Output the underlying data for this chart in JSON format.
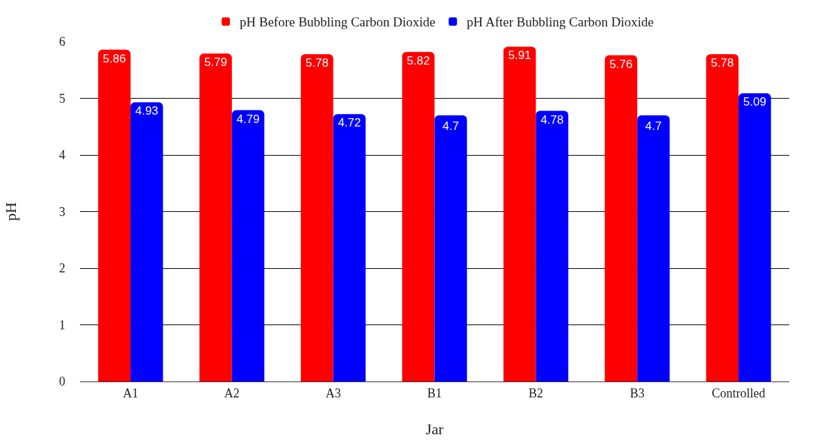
{
  "chart_data": {
    "type": "bar",
    "xlabel": "Jar",
    "ylabel": "pH",
    "categories": [
      "A1",
      "A2",
      "A3",
      "B1",
      "B2",
      "B3",
      "Controlled"
    ],
    "series": [
      {
        "name": "pH Before Bubbling Carbon Dioxide",
        "color": "#ff0000",
        "values": [
          5.86,
          5.79,
          5.78,
          5.82,
          5.91,
          5.76,
          5.78
        ]
      },
      {
        "name": "pH After Bubbling Carbon Dioxide",
        "color": "#0000ff",
        "values": [
          4.93,
          4.79,
          4.72,
          4.7,
          4.78,
          4.7,
          5.09
        ]
      }
    ],
    "ylim": [
      0,
      6
    ],
    "yticks": [
      0,
      1,
      2,
      3,
      4,
      5,
      6
    ],
    "grid": "y",
    "legend": "top",
    "data_labels": true
  }
}
